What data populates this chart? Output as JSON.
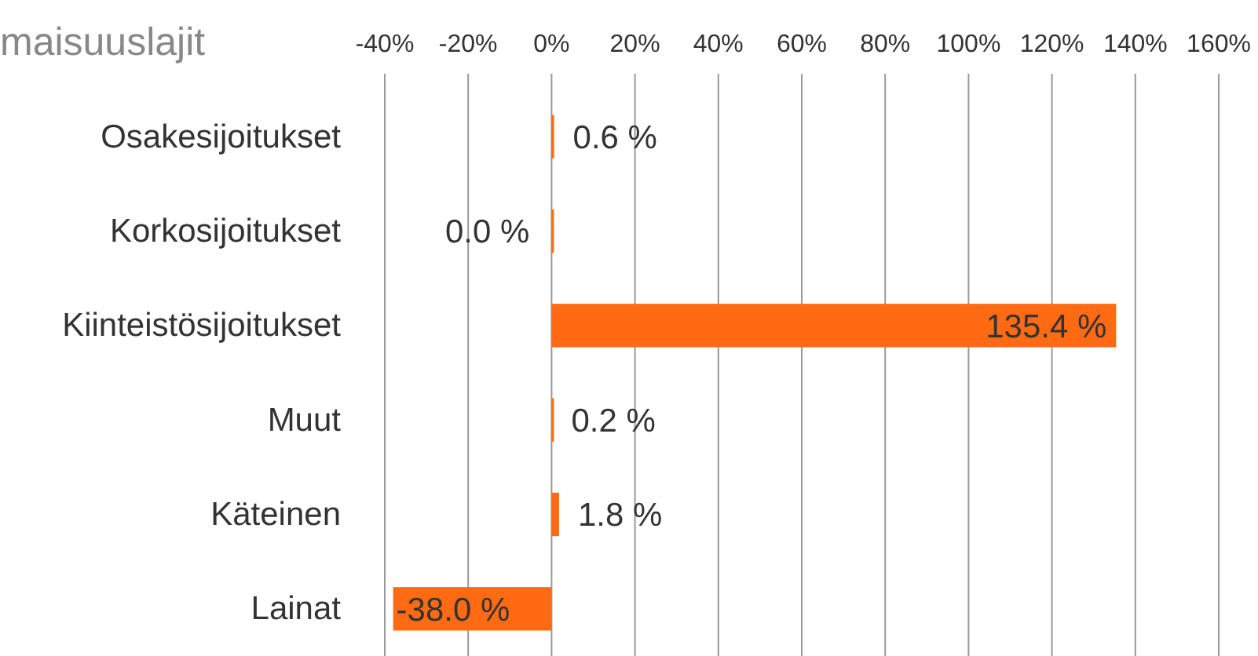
{
  "chart_data": {
    "type": "bar",
    "orientation": "horizontal",
    "title": "maisuuslajit",
    "categories": [
      "Osakesijoitukset",
      "Korkosijoitukset",
      "Kiinteistösijoitukset",
      "Muut",
      "Käteinen",
      "Lainat"
    ],
    "values": [
      0.6,
      0.0,
      135.4,
      0.2,
      1.8,
      -38.0
    ],
    "value_labels": [
      "0.6 %",
      "0.0 %",
      "135.4 %",
      "0.2 %",
      "1.8 %",
      "-38.0 %"
    ],
    "color": "#ff6a13",
    "xlim": [
      -40,
      160
    ],
    "xticks": [
      {
        "value": -40,
        "label": "-40%"
      },
      {
        "value": -20,
        "label": "-20%"
      },
      {
        "value": 0,
        "label": "0%"
      },
      {
        "value": 20,
        "label": "20%"
      },
      {
        "value": 40,
        "label": "40%"
      },
      {
        "value": 60,
        "label": "60%"
      },
      {
        "value": 80,
        "label": "80%"
      },
      {
        "value": 100,
        "label": "100%"
      },
      {
        "value": 120,
        "label": "120%"
      },
      {
        "value": 140,
        "label": "140%"
      },
      {
        "value": 160,
        "label": "160%"
      }
    ],
    "grid": "x"
  }
}
